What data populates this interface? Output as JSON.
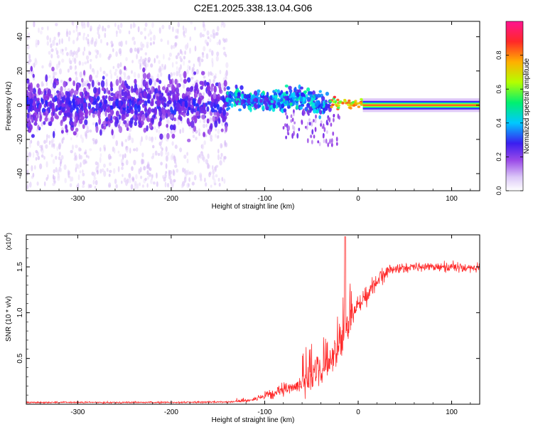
{
  "title": "C2E1.2025.338.13.04.G06",
  "chart_data": [
    {
      "type": "heatmap",
      "xlabel": "Height of straight line (km)",
      "ylabel": "Frequency (Hz)",
      "xlim": [
        -355,
        130
      ],
      "ylim": [
        -50,
        49
      ],
      "xticks": [
        -300,
        -200,
        -100,
        0,
        100
      ],
      "yticks": [
        -40,
        -20,
        0,
        20,
        40
      ],
      "colorbar": {
        "label": "Normalized spectral amplitude",
        "range": [
          0.0,
          1.0
        ],
        "ticks": [
          0.0,
          0.2,
          0.4,
          0.6,
          0.8
        ],
        "tick_labels": [
          "0.0",
          "0.2",
          "0.4",
          "0.6",
          "0.8"
        ],
        "colors": [
          "#ffffff",
          "#d2b4f5",
          "#8a2be2",
          "#2020ff",
          "#00e0ff",
          "#00ff66",
          "#c8ff00",
          "#ffa500",
          "#ff2020",
          "#ff1493"
        ]
      },
      "regions": [
        {
          "x_range": [
            -355,
            -140
          ],
          "freq_center": 0,
          "core_spread": 10,
          "halo_spread": 48,
          "amplitude": "0.05-0.35",
          "description": "scattered weak"
        },
        {
          "x_range": [
            -140,
            -30
          ],
          "freq_center_track": [
            [
              -140,
              3
            ],
            [
              -120,
              4
            ],
            [
              -100,
              2
            ],
            [
              -80,
              3
            ],
            [
              -65,
              5
            ],
            [
              -50,
              2
            ],
            [
              -35,
              0
            ]
          ],
          "core_spread": 4,
          "amplitude": "0.3-0.6"
        },
        {
          "x_range": [
            -30,
            5
          ],
          "freq_center": 1,
          "core_spread": 2,
          "amplitude": "0.6-0.9"
        },
        {
          "x_range": [
            5,
            130
          ],
          "freq_center": 0,
          "core_spread": 1,
          "amplitude": "1.0"
        }
      ]
    },
    {
      "type": "line",
      "xlabel": "Height of straight line (km)",
      "ylabel": "SNR (10 * v/v)",
      "y_multiplier_label": "(x10",
      "y_multiplier_exp": "4",
      "y_multiplier_close": ")",
      "xlim": [
        -355,
        130
      ],
      "ylim": [
        0,
        1.85
      ],
      "xticks": [
        -300,
        -200,
        -100,
        0,
        100
      ],
      "yticks": [
        0.5,
        1.0,
        1.5
      ],
      "ytick_labels": [
        "0.5",
        "1.0",
        "1.5"
      ],
      "color": "#ff2a2a",
      "series": [
        {
          "name": "SNR",
          "envelope_x": [
            -355,
            -200,
            -140,
            -120,
            -100,
            -80,
            -60,
            -45,
            -30,
            -20,
            -15,
            -10,
            -5,
            0,
            10,
            20,
            30,
            40,
            60,
            80,
            100,
            130
          ],
          "envelope_y": [
            0.02,
            0.02,
            0.025,
            0.04,
            0.08,
            0.15,
            0.22,
            0.3,
            0.45,
            0.6,
            0.75,
            0.9,
            1.0,
            1.1,
            1.2,
            1.35,
            1.45,
            1.48,
            1.5,
            1.5,
            1.5,
            1.48
          ],
          "noise": [
            [
              -355,
              -130,
              0.01
            ],
            [
              -130,
              -100,
              0.03
            ],
            [
              -100,
              -60,
              0.08
            ],
            [
              -60,
              -20,
              0.18
            ],
            [
              -20,
              -5,
              0.22
            ],
            [
              -5,
              30,
              0.12
            ],
            [
              30,
              130,
              0.06
            ]
          ],
          "spike": {
            "x": -14,
            "y": 1.83
          }
        }
      ]
    }
  ]
}
